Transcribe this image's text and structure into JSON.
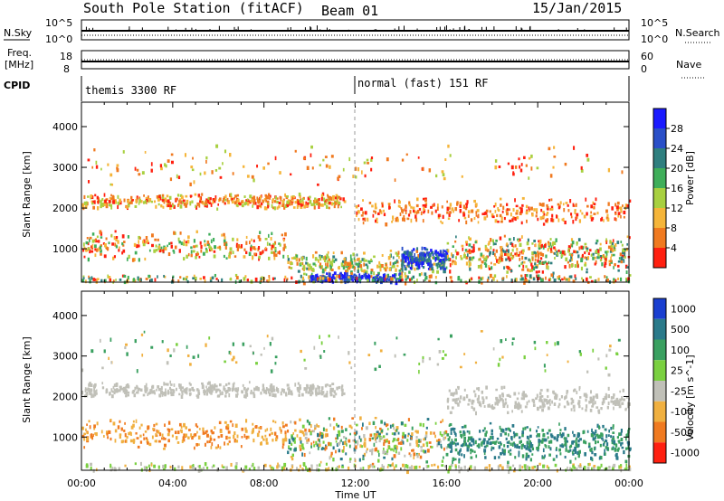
{
  "header": {
    "station": "South Pole Station (fitACF)",
    "beam": "Beam 01",
    "date": "15/Jan/2015"
  },
  "top_labels": {
    "nsky": "N.Sky",
    "nsky_ticks": [
      "10^5",
      "10^0"
    ],
    "nsearch": "N.Search",
    "nsearch_ticks": [
      "10^5",
      "10^0"
    ],
    "freq": "Freq.",
    "freq_unit": "[MHz]",
    "freq_ticks": [
      "18",
      "8"
    ],
    "nave": "Nave",
    "nave_ticks": [
      "60",
      "0"
    ],
    "cpid": "CPID",
    "cpid_segments": [
      "themis 3300 RF",
      "normal (fast) 151 RF"
    ]
  },
  "chart_data": [
    {
      "type": "heatmap",
      "name": "power-panel",
      "xlabel": "",
      "ylabel": "Slant Range [km]",
      "x_ticks": [
        "00:00",
        "04:00",
        "08:00",
        "12:00",
        "16:00",
        "20:00",
        "00:00"
      ],
      "xlim_hours": [
        0,
        24
      ],
      "y_ticks": [
        1000,
        2000,
        3000,
        4000
      ],
      "ylim": [
        180,
        4600
      ],
      "colorbar_label": "Power [dB]",
      "colorbar_ticks": [
        "4",
        "8",
        "12",
        "16",
        "20",
        "24",
        "28"
      ],
      "colorbar_colors": [
        "#1a1aff",
        "#2a4fc8",
        "#2f7f7f",
        "#3fae5a",
        "#a8d040",
        "#f5b53a",
        "#f07a20",
        "#ff2010"
      ]
    },
    {
      "type": "heatmap",
      "name": "velocity-panel",
      "xlabel": "Time UT",
      "ylabel": "Slant Range [km]",
      "x_ticks": [
        "00:00",
        "04:00",
        "08:00",
        "12:00",
        "16:00",
        "20:00",
        "00:00"
      ],
      "xlim_hours": [
        0,
        24
      ],
      "y_ticks": [
        1000,
        2000,
        3000,
        4000
      ],
      "ylim": [
        180,
        4600
      ],
      "colorbar_label": "Velocity [m s^-1]",
      "colorbar_ticks": [
        "1000",
        "500",
        "100",
        "25",
        "-25",
        "-100",
        "-500",
        "-1000"
      ],
      "colorbar_colors": [
        "#1a3fd0",
        "#2a7a8a",
        "#3aa060",
        "#7ad040",
        "#c0c0b8",
        "#f0b040",
        "#f07a20",
        "#ff2010"
      ]
    }
  ]
}
